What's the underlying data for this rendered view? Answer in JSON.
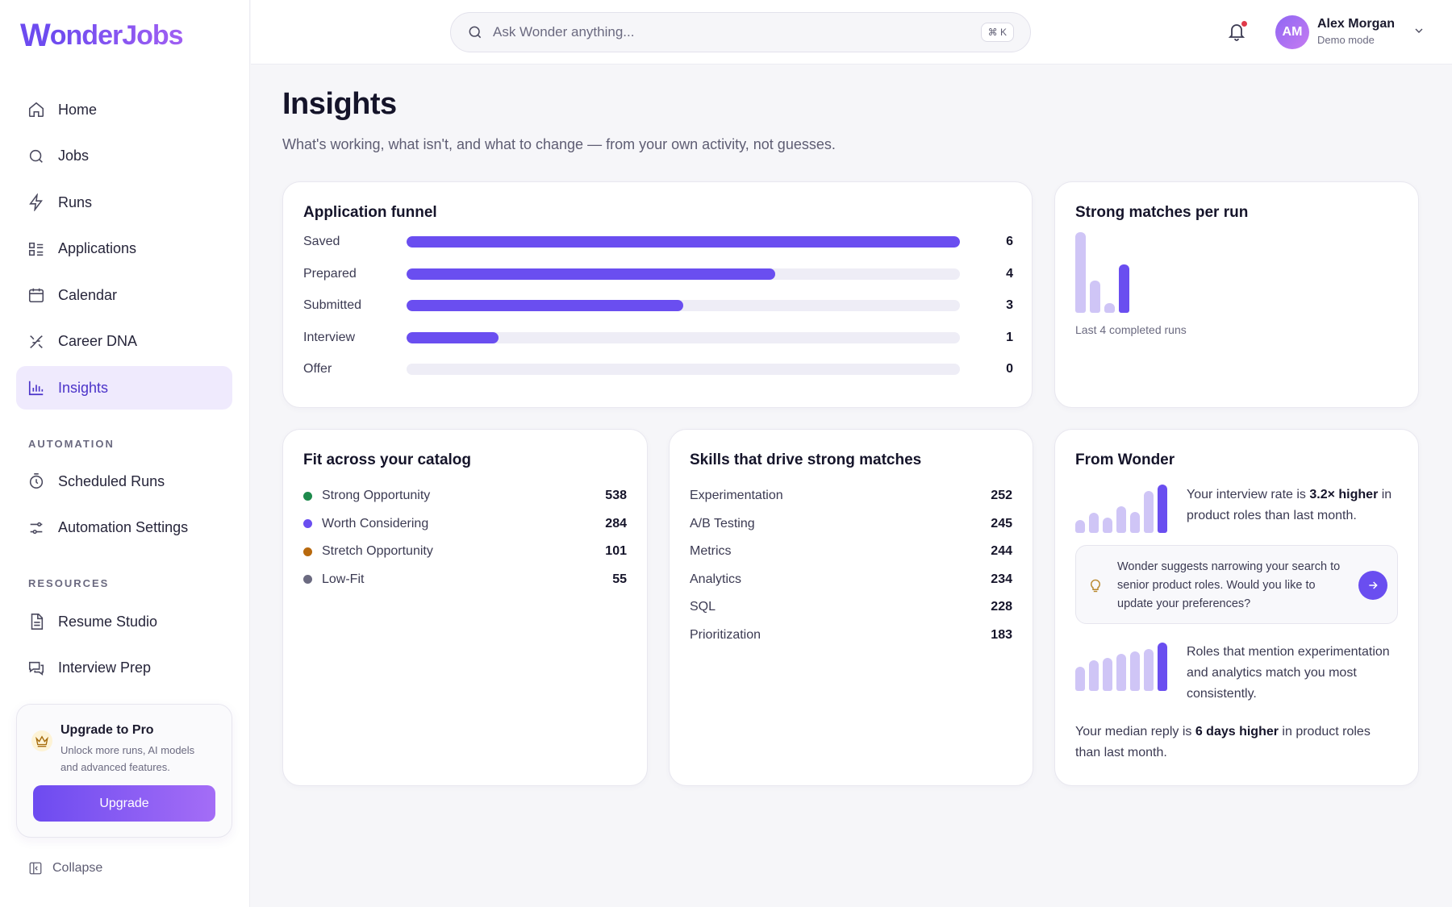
{
  "brand": {
    "logo_w": "W",
    "logo_rest": "onderJobs"
  },
  "sidebar": {
    "items": [
      {
        "label": "Home",
        "icon": "home-icon"
      },
      {
        "label": "Jobs",
        "icon": "search-icon"
      },
      {
        "label": "Runs",
        "icon": "bolt-icon"
      },
      {
        "label": "Applications",
        "icon": "list-icon"
      },
      {
        "label": "Calendar",
        "icon": "calendar-icon"
      },
      {
        "label": "Career DNA",
        "icon": "dna-icon"
      },
      {
        "label": "Insights",
        "icon": "bar-chart-icon",
        "active": true
      }
    ],
    "automation_label": "AUTOMATION",
    "automation_items": [
      {
        "label": "Scheduled Runs",
        "icon": "timer-icon"
      },
      {
        "label": "Automation Settings",
        "icon": "sliders-icon"
      }
    ],
    "resources_label": "RESOURCES",
    "resources_items": [
      {
        "label": "Resume Studio",
        "icon": "document-icon"
      },
      {
        "label": "Interview Prep",
        "icon": "chat-icon"
      }
    ],
    "upgrade": {
      "title": "Upgrade to Pro",
      "description": "Unlock more runs, AI models and advanced features.",
      "button": "Upgrade"
    },
    "collapse_label": "Collapse"
  },
  "topbar": {
    "search_placeholder": "Ask Wonder anything...",
    "shortcut": "⌘ K",
    "user": {
      "initials": "AM",
      "name": "Alex Morgan",
      "mode": "Demo mode"
    }
  },
  "page": {
    "title": "Insights",
    "subtitle": "What's working, what isn't, and what to change — from your own activity, not guesses."
  },
  "funnel": {
    "title": "Application funnel",
    "max": 6,
    "rows": [
      {
        "label": "Saved",
        "value": 6
      },
      {
        "label": "Prepared",
        "value": 4
      },
      {
        "label": "Submitted",
        "value": 3
      },
      {
        "label": "Interview",
        "value": 1
      },
      {
        "label": "Offer",
        "value": 0
      }
    ]
  },
  "strong_matches": {
    "title": "Strong matches per run",
    "caption": "Last 4 completed runs",
    "values": [
      100,
      40,
      12,
      60
    ],
    "highlight_index": 3
  },
  "fit": {
    "title": "Fit across your catalog",
    "rows": [
      {
        "label": "Strong Opportunity",
        "value": "538",
        "color": "#1e8a4c"
      },
      {
        "label": "Worth Considering",
        "value": "284",
        "color": "#6a4ef0"
      },
      {
        "label": "Stretch Opportunity",
        "value": "101",
        "color": "#b8690e"
      },
      {
        "label": "Low-Fit",
        "value": "55",
        "color": "#6b6a80"
      }
    ]
  },
  "skills": {
    "title": "Skills that drive strong matches",
    "rows": [
      {
        "label": "Experimentation",
        "value": "252"
      },
      {
        "label": "A/B Testing",
        "value": "245"
      },
      {
        "label": "Metrics",
        "value": "244"
      },
      {
        "label": "Analytics",
        "value": "234"
      },
      {
        "label": "SQL",
        "value": "228"
      },
      {
        "label": "Prioritization",
        "value": "183"
      }
    ]
  },
  "wonder": {
    "title": "From Wonder",
    "insight1": {
      "pre": "Your interview rate is ",
      "bold": "3.2× higher",
      "post": " in product roles than last month."
    },
    "chart1": [
      30,
      45,
      35,
      60,
      48,
      95,
      110
    ],
    "suggestion": "Wonder suggests narrowing your search to senior product roles. Would you like to update your preferences?",
    "insight2": "Roles that mention experimentation and analytics match you most consistently.",
    "chart2": [
      55,
      70,
      75,
      85,
      90,
      95,
      110
    ],
    "insight3": {
      "pre": "Your median reply is ",
      "bold": "6 days higher",
      "post": " in product roles than last month."
    }
  }
}
